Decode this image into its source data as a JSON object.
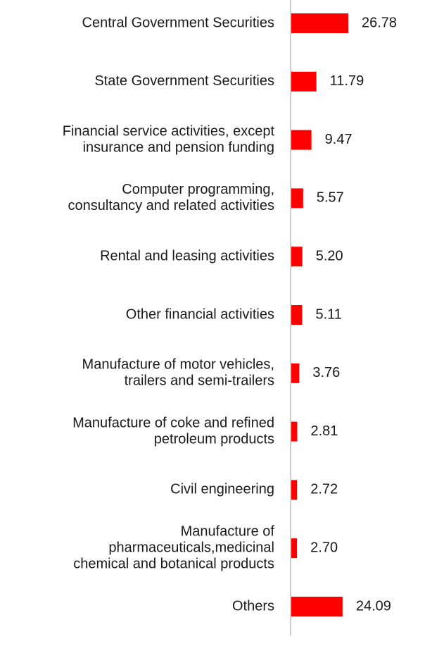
{
  "chart_data": {
    "type": "bar",
    "orientation": "horizontal",
    "categories": [
      "Central Government Securities",
      "State Government Securities",
      "Financial service activities, except insurance and pension funding",
      "Computer programming, consultancy and related activities",
      "Rental and leasing activities",
      "Other financial activities",
      "Manufacture of motor vehicles, trailers and semi-trailers",
      "Manufacture of coke and refined petroleum products",
      "Civil engineering",
      "Manufacture of pharmaceuticals,medicinal chemical and botanical products",
      "Others"
    ],
    "category_lines": [
      [
        "Central Government Securities"
      ],
      [
        "State Government Securities"
      ],
      [
        "Financial service activities, except",
        "insurance and pension funding"
      ],
      [
        "Computer programming,",
        "consultancy and related activities"
      ],
      [
        "Rental and leasing activities"
      ],
      [
        "Other financial activities"
      ],
      [
        "Manufacture of motor vehicles,",
        "trailers and semi-trailers"
      ],
      [
        "Manufacture of coke and refined",
        "petroleum products"
      ],
      [
        "Civil engineering"
      ],
      [
        "Manufacture of",
        "pharmaceuticals,medicinal",
        "chemical and botanical products"
      ],
      [
        "Others"
      ]
    ],
    "values": [
      26.78,
      11.79,
      9.47,
      5.57,
      5.2,
      5.11,
      3.76,
      2.81,
      2.72,
      2.7,
      24.09
    ],
    "value_labels": [
      "26.78",
      "11.79",
      "9.47",
      "5.57",
      "5.20",
      "5.11",
      "3.76",
      "2.81",
      "2.72",
      "2.70",
      "24.09"
    ],
    "xlim": [
      0,
      30
    ],
    "grid": false,
    "legend": "none",
    "bar_color": "#ff0000",
    "axis_color": "#cccccc",
    "title": "",
    "xlabel": "",
    "ylabel": ""
  }
}
